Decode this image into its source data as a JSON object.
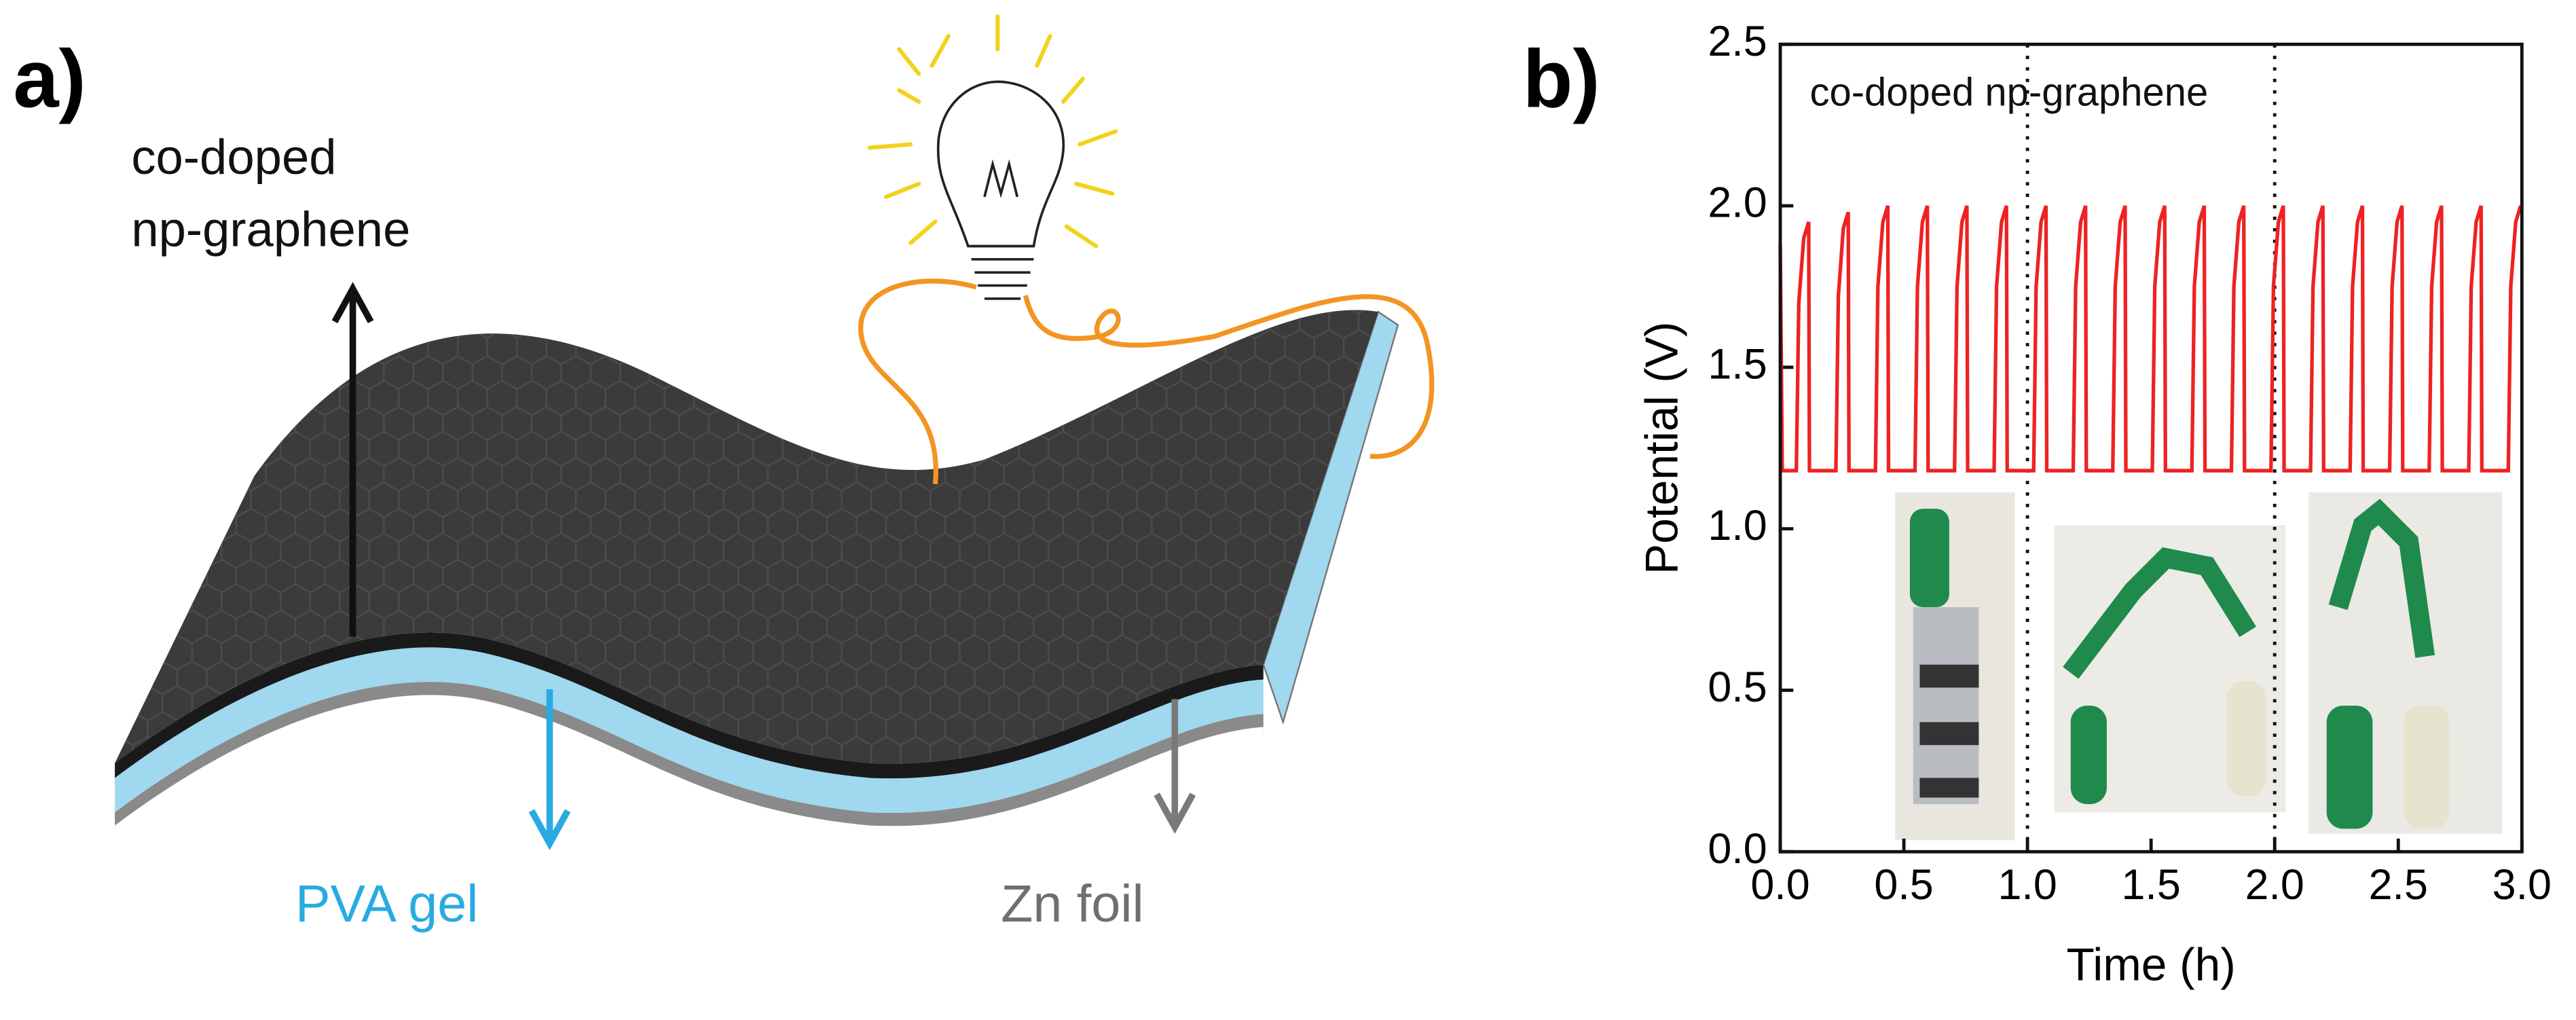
{
  "panel_a": {
    "label": "a)",
    "top_label": [
      "co-doped",
      "np-graphene"
    ],
    "middle_label": "PVA gel",
    "bottom_label": "Zn foil"
  },
  "chart_data": {
    "type": "line",
    "panel_label": "b)",
    "annotation": "co-doped np-graphene",
    "xlabel": "Time (h)",
    "ylabel": "Potential (V)",
    "color": "#ee2222",
    "xlim": [
      0,
      3
    ],
    "ylim": [
      0,
      2.5
    ],
    "xticks": [
      {
        "value": 0,
        "label": "0.0"
      },
      0.5,
      {
        "value": 1,
        "label": "1.0"
      },
      1.5,
      {
        "value": 2,
        "label": "2.0"
      },
      2.5,
      {
        "value": 3,
        "label": "3.0"
      }
    ],
    "yticks": [
      {
        "value": 0,
        "label": "0.0"
      },
      0.5,
      {
        "value": 1,
        "label": "1.0"
      },
      1.5,
      {
        "value": 2,
        "label": "2.0"
      },
      2.5
    ],
    "vlines": [
      1,
      2
    ],
    "x": [
      0,
      0.008,
      0.065,
      0.075,
      0.095,
      0.115,
      0.118,
      0.225,
      0.235,
      0.255,
      0.275,
      0.278,
      0.385,
      0.395,
      0.415,
      0.435,
      0.438,
      0.545,
      0.555,
      0.575,
      0.595,
      0.598,
      0.705,
      0.715,
      0.735,
      0.755,
      0.758,
      0.865,
      0.875,
      0.895,
      0.915,
      0.918,
      1.025,
      1.035,
      1.055,
      1.075,
      1.078,
      1.185,
      1.195,
      1.215,
      1.235,
      1.238,
      1.345,
      1.355,
      1.375,
      1.395,
      1.398,
      1.505,
      1.515,
      1.535,
      1.555,
      1.558,
      1.665,
      1.675,
      1.695,
      1.715,
      1.718,
      1.825,
      1.835,
      1.855,
      1.875,
      1.878,
      1.985,
      1.995,
      2.015,
      2.035,
      2.038,
      2.145,
      2.155,
      2.175,
      2.195,
      2.198,
      2.305,
      2.315,
      2.335,
      2.355,
      2.358,
      2.465,
      2.475,
      2.495,
      2.515,
      2.518,
      2.625,
      2.635,
      2.655,
      2.675,
      2.678,
      2.785,
      2.795,
      2.815,
      2.835,
      2.838,
      2.945,
      2.955,
      2.975,
      2.995
    ],
    "values": [
      1.88,
      1.18,
      1.18,
      1.7,
      1.9,
      1.95,
      1.18,
      1.18,
      1.72,
      1.93,
      1.98,
      1.18,
      1.18,
      1.75,
      1.95,
      2.0,
      1.18,
      1.18,
      1.75,
      1.95,
      2.0,
      1.18,
      1.18,
      1.75,
      1.95,
      2.0,
      1.18,
      1.18,
      1.75,
      1.95,
      2.0,
      1.18,
      1.18,
      1.75,
      1.95,
      2.0,
      1.18,
      1.18,
      1.75,
      1.95,
      2.0,
      1.18,
      1.18,
      1.75,
      1.95,
      2.0,
      1.18,
      1.18,
      1.75,
      1.95,
      2.0,
      1.18,
      1.18,
      1.75,
      1.95,
      2.0,
      1.18,
      1.18,
      1.75,
      1.95,
      2.0,
      1.18,
      1.18,
      1.75,
      1.95,
      2.0,
      1.18,
      1.18,
      1.75,
      1.95,
      2.0,
      1.18,
      1.18,
      1.75,
      1.95,
      2.0,
      1.18,
      1.18,
      1.75,
      1.95,
      2.0,
      1.18,
      1.18,
      1.75,
      1.95,
      2.0,
      1.18,
      1.18,
      1.75,
      1.95,
      2.0,
      1.18,
      1.18,
      1.75,
      1.95,
      2.0
    ]
  }
}
